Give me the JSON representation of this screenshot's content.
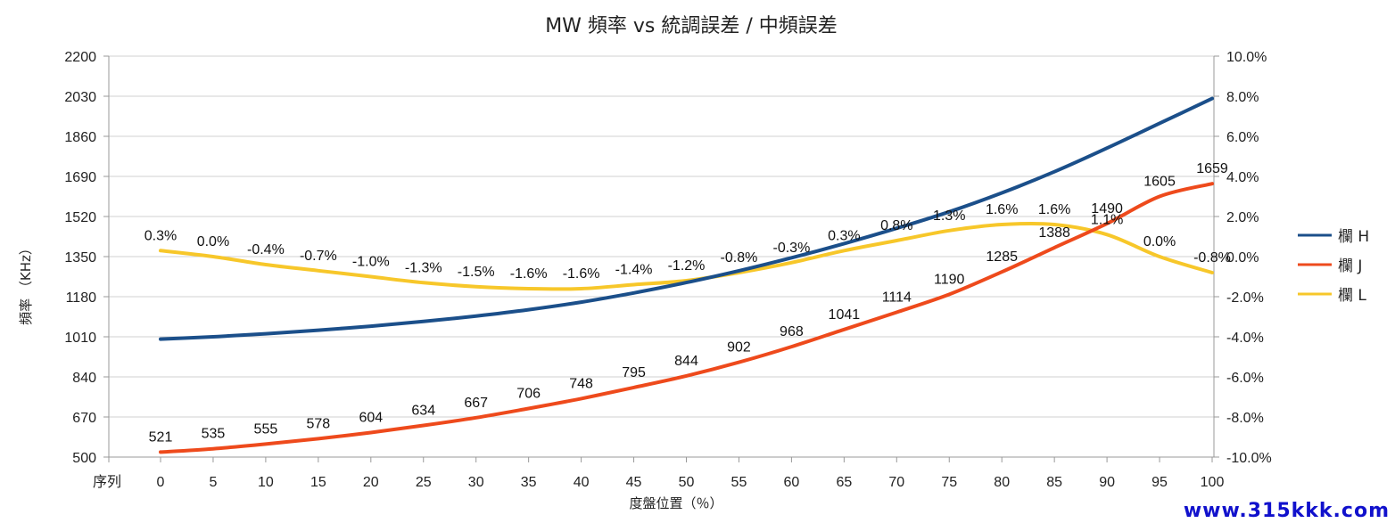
{
  "chart_data": {
    "type": "line",
    "title": "MW  頻率 vs 統調誤差 / 中頻誤差",
    "xlabel": "度盤位置（％）",
    "ylabel": "頻率 （KHz）",
    "y2label": "",
    "x_axis_prefix": "序列",
    "x": [
      0,
      5,
      10,
      15,
      20,
      25,
      30,
      35,
      40,
      45,
      50,
      55,
      60,
      65,
      70,
      75,
      80,
      85,
      90,
      95,
      100
    ],
    "ylim": [
      500,
      2200
    ],
    "yticks": [
      500,
      670,
      840,
      1010,
      1180,
      1350,
      1520,
      1690,
      1860,
      2030,
      2200
    ],
    "y2lim": [
      -10,
      10
    ],
    "y2ticks": [
      "-10.0%",
      "-8.0%",
      "-6.0%",
      "-4.0%",
      "-2.0%",
      "0.0%",
      "2.0%",
      "4.0%",
      "6.0%",
      "8.0%",
      "10.0%"
    ],
    "grid": "horizontal",
    "legend_position": "right",
    "series": [
      {
        "name": "欄 H",
        "axis": "left",
        "color": "#1b4f8a",
        "values": [
          1000,
          1010,
          1023,
          1038,
          1055,
          1075,
          1098,
          1125,
          1157,
          1196,
          1240,
          1290,
          1345,
          1405,
          1470,
          1540,
          1620,
          1710,
          1810,
          1915,
          2020
        ],
        "show_labels": false
      },
      {
        "name": "欄 J",
        "axis": "left",
        "color": "#ee4a1c",
        "values": [
          521,
          535,
          555,
          578,
          604,
          634,
          667,
          706,
          748,
          795,
          844,
          902,
          968,
          1041,
          1114,
          1190,
          1285,
          1388,
          1490,
          1605,
          1659
        ],
        "labels": [
          "521",
          "535",
          "555",
          "578",
          "604",
          "634",
          "667",
          "706",
          "748",
          "795",
          "844",
          "902",
          "968",
          "1041",
          "1114",
          "1190",
          "1285",
          "1388",
          "1490",
          "1605",
          "1659"
        ],
        "show_labels": true
      },
      {
        "name": "欄 L",
        "axis": "right",
        "color": "#f7c72a",
        "values": [
          0.3,
          0.0,
          -0.4,
          -0.7,
          -1.0,
          -1.3,
          -1.5,
          -1.6,
          -1.6,
          -1.4,
          -1.2,
          -0.8,
          -0.3,
          0.3,
          0.8,
          1.3,
          1.6,
          1.6,
          1.1,
          0.0,
          -0.8
        ],
        "labels": [
          "0.3%",
          "0.0%",
          "-0.4%",
          "-0.7%",
          "-1.0%",
          "-1.3%",
          "-1.5%",
          "-1.6%",
          "-1.6%",
          "-1.4%",
          "-1.2%",
          "-0.8%",
          "-0.3%",
          "0.3%",
          "0.8%",
          "1.3%",
          "1.6%",
          "1.6%",
          "1.1%",
          "0.0%",
          "-0.8%"
        ],
        "show_labels": true
      }
    ]
  },
  "legend": [
    "欄 H",
    "欄 J",
    "欄 L"
  ],
  "watermark": "www.315kkk.com"
}
